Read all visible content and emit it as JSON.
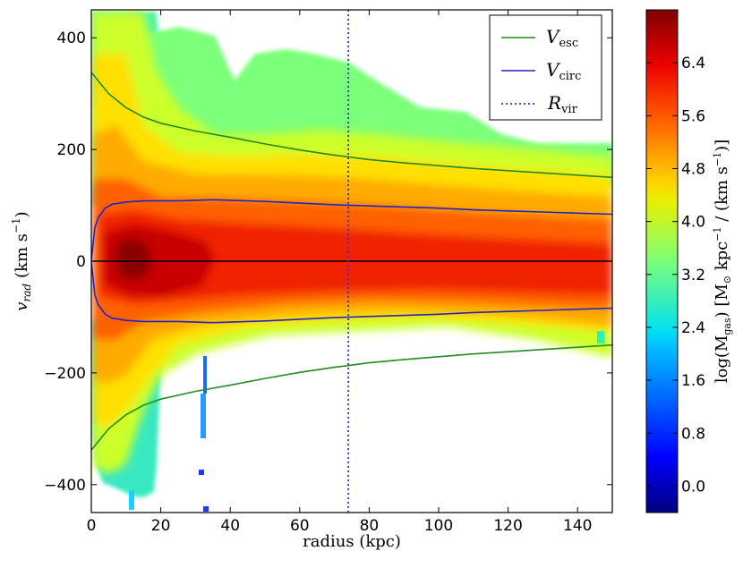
{
  "chart_data": {
    "type": "heatmap",
    "xlabel": "radius (kpc)",
    "ylabel": "v",
    "ylabel_sub": "rad",
    "ylabel_unit": "(km s",
    "ylabel_sup": "−1",
    "ylabel_close": ")",
    "xlim": [
      0,
      150
    ],
    "ylim": [
      -450,
      450
    ],
    "x_ticks": [
      0,
      20,
      40,
      60,
      80,
      100,
      120,
      140
    ],
    "y_ticks": [
      -400,
      -200,
      0,
      200,
      400
    ],
    "y_tick_labels": [
      "−400",
      "−200",
      "0",
      "200",
      "400"
    ],
    "colorbar": {
      "label_main": "log(M",
      "label_sub": "gas",
      "label_rest": ") [M",
      "label_sun": "⊙",
      "label_unit": " kpc",
      "label_sup1": "−1",
      "label_mid": " / (km s",
      "label_sup2": "−1",
      "label_end": ")]",
      "range": [
        -0.4,
        7.2
      ],
      "ticks": [
        0.0,
        0.8,
        1.6,
        2.4,
        3.2,
        4.0,
        4.8,
        5.6,
        6.4
      ],
      "tick_labels": [
        "0.0",
        "0.8",
        "1.6",
        "2.4",
        "3.2",
        "4.0",
        "4.8",
        "5.6",
        "6.4"
      ],
      "colormap": "jet"
    },
    "curves": [
      {
        "name": "V",
        "sub": "esc",
        "color": "#228b22",
        "style": "solid",
        "x": [
          0,
          5,
          10,
          15,
          20,
          25,
          30,
          40,
          50,
          60,
          70,
          80,
          90,
          100,
          110,
          120,
          130,
          140,
          150
        ],
        "y": [
          338,
          300,
          275,
          258,
          247,
          240,
          233,
          222,
          210,
          199,
          190,
          182,
          176,
          171,
          166,
          162,
          158,
          154,
          150
        ]
      },
      {
        "name": "V",
        "sub": "circ",
        "color": "#2222cc",
        "style": "solid",
        "x": [
          0,
          1,
          2,
          4,
          6,
          10,
          15,
          20,
          25,
          30,
          35,
          40,
          50,
          60,
          70,
          80,
          90,
          100,
          110,
          120,
          130,
          140,
          150
        ],
        "y": [
          0,
          60,
          78,
          95,
          102,
          106,
          108,
          108,
          108,
          109,
          110,
          109,
          107,
          104,
          101,
          99,
          97,
          95,
          92,
          90,
          88,
          86,
          84
        ]
      },
      {
        "name": "R",
        "sub": "vir",
        "color": "#3333cc",
        "style": "dotted",
        "x_value": 74
      }
    ],
    "zero_line": {
      "y": 0,
      "color": "#000000"
    },
    "legend_position": "upper-right",
    "grid": false
  }
}
